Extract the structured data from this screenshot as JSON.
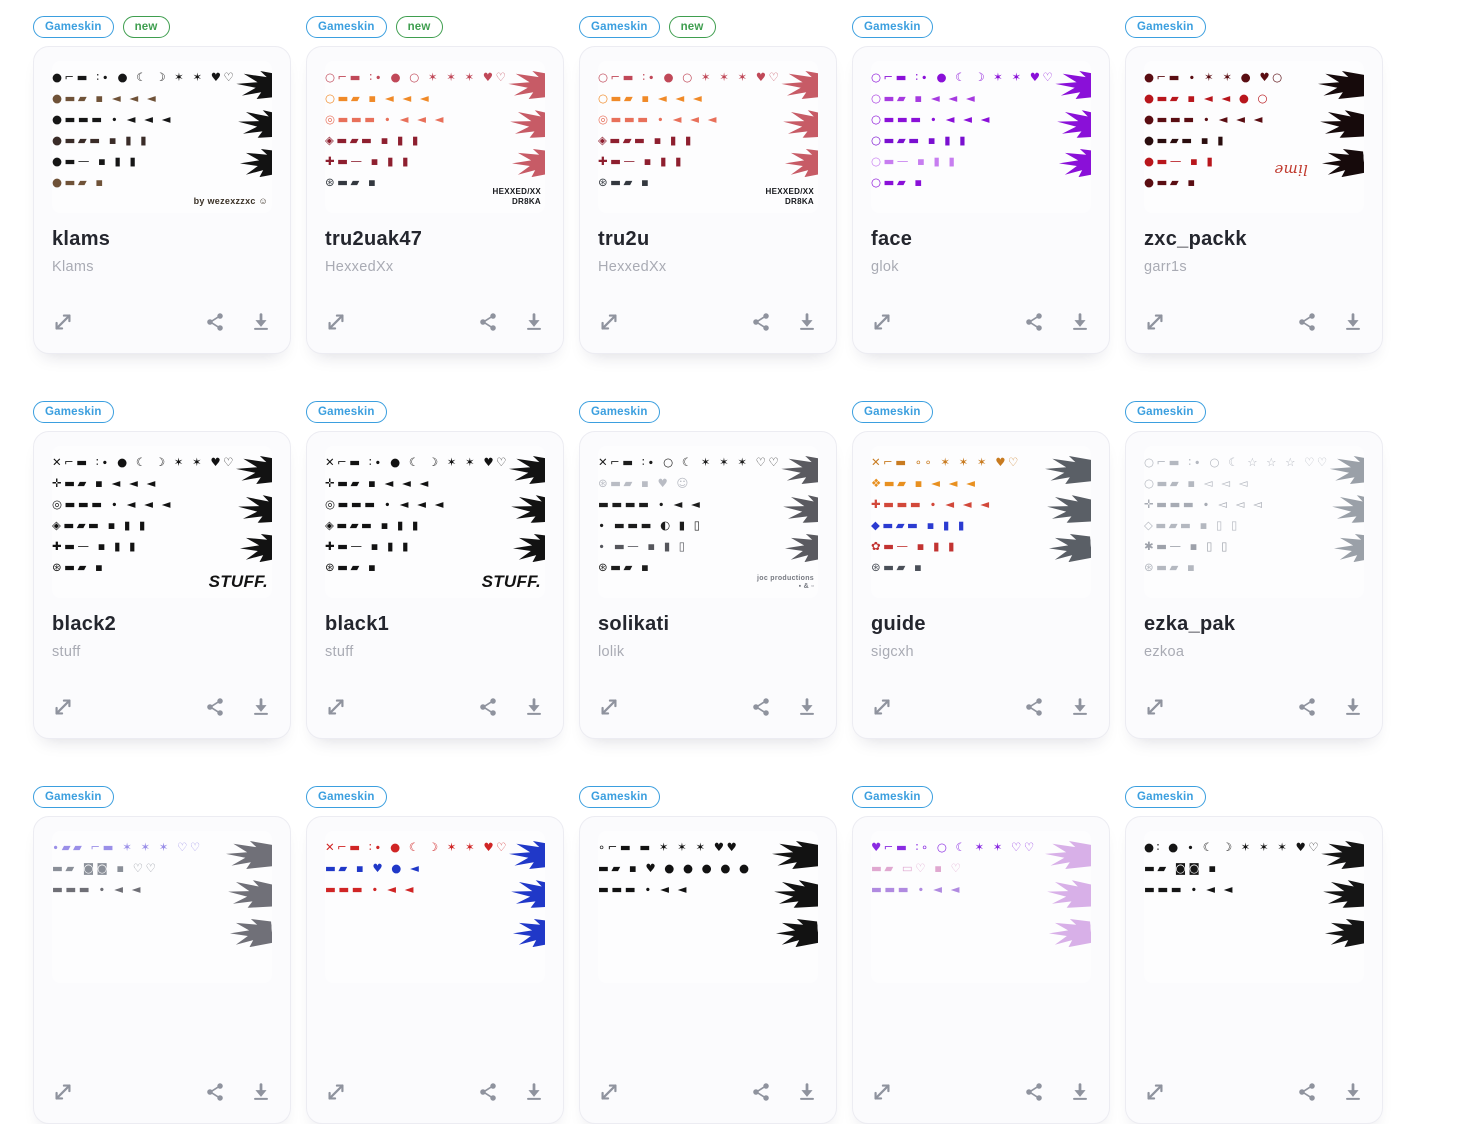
{
  "page": {
    "background": "#ffffff"
  },
  "badge_theme": {
    "gameskin_color": "#3b9fdf",
    "new_color": "#3f9e4f"
  },
  "icon_theme": {
    "color": "#8f939e",
    "names": [
      "expand-icon",
      "share-icon",
      "download-icon"
    ]
  },
  "cards": [
    {
      "badge": "Gameskin",
      "new_badge": "new",
      "title": "klams",
      "subtitle": "Klams",
      "preview": {
        "wing_color": "#121212",
        "watermark": {
          "text": "by wezexzzxc ☺",
          "color": "#3a3126",
          "size": 9
        },
        "rows": [
          {
            "t": "●⌐▬ ∶∙ ● ☾ ☽ ✶ ✶ ♥♡",
            "c": "#161616"
          },
          {
            "t": "●▬▰ ▪ ◄ ◄ ◄",
            "c": "#6f5238"
          },
          {
            "t": "●▬▬▬ ∙ ◄ ◄ ◄",
            "c": "#161616"
          },
          {
            "t": "●▬▰▬ ▪ ▮ ▮",
            "c": "#3a2c28"
          },
          {
            "t": "●▬— ▪ ▮ ▮",
            "c": "#161616"
          },
          {
            "t": "●▬▰ ▪",
            "c": "#6f5238"
          }
        ]
      }
    },
    {
      "badge": "Gameskin",
      "new_badge": "new",
      "title": "tru2uak47",
      "subtitle": "HexxedXx",
      "preview": {
        "wing_color": "#c75b66",
        "watermark": {
          "text": "HEXXED/XX\nDR8KA",
          "color": "#16181c",
          "size": 8,
          "bold": true
        },
        "rows": [
          {
            "t": "○⌐▬ ∶∙ ● ○ ✶ ✶ ✶ ♥♡",
            "c": "#c04858"
          },
          {
            "t": "○▬▰ ▪ ◄ ◄ ◄",
            "c": "#f08a28"
          },
          {
            "t": "◎▬▬▬ ∙ ◄ ◄ ◄",
            "c": "#e8705a"
          },
          {
            "t": "◈▬▰▬ ▪ ▮ ▮",
            "c": "#8e1f2f"
          },
          {
            "t": "✚▬— ▪ ▮ ▮",
            "c": "#8e1f2f"
          },
          {
            "t": "⊛▬▰ ▪",
            "c": "#33383f"
          }
        ]
      }
    },
    {
      "badge": "Gameskin",
      "new_badge": "new",
      "title": "tru2u",
      "subtitle": "HexxedXx",
      "preview": {
        "wing_color": "#c75b66",
        "watermark": {
          "text": "HEXXED/XX\nDR8KA",
          "color": "#16181c",
          "size": 8,
          "bold": true
        },
        "rows": [
          {
            "t": "○⌐▬ ∶∙ ● ○ ✶ ✶ ✶ ♥♡",
            "c": "#c04858"
          },
          {
            "t": "○▬▰ ▪ ◄ ◄ ◄",
            "c": "#f08a28"
          },
          {
            "t": "◎▬▬▬ ∙ ◄ ◄ ◄",
            "c": "#e8705a"
          },
          {
            "t": "◈▬▰▬ ▪ ▮ ▮",
            "c": "#8e1f2f"
          },
          {
            "t": "✚▬— ▪ ▮ ▮",
            "c": "#8e1f2f"
          },
          {
            "t": "⊛▬▰ ▪",
            "c": "#33383f"
          }
        ]
      }
    },
    {
      "badge": "Gameskin",
      "new_badge": null,
      "title": "face",
      "subtitle": "glok",
      "preview": {
        "wing_color": "#8a10d8",
        "watermark": null,
        "rows": [
          {
            "t": "○⌐▬ ∶∙ ● ☾ ☽ ✶ ✶ ♥♡",
            "c": "#8a10d8"
          },
          {
            "t": "○▬▰ ▪ ◄ ◄ ◄",
            "c": "#a63ae0"
          },
          {
            "t": "○▬▬▬ ∙ ◄ ◄ ◄",
            "c": "#8a10d8"
          },
          {
            "t": "○▬▰▬ ▪ ▮ ▮",
            "c": "#7a0fd0"
          },
          {
            "t": "○▬— ▪ ▮ ▮",
            "c": "#c77df0"
          },
          {
            "t": "○▬▰ ▪",
            "c": "#8a10d8"
          }
        ]
      }
    },
    {
      "badge": "Gameskin",
      "new_badge": null,
      "title": "zxc_packk",
      "subtitle": "garr1s",
      "preview": {
        "wing_color": "#160a0b",
        "watermark": {
          "text": "lime",
          "color": "#c03a2e",
          "size": 15,
          "italic": true,
          "serif": true,
          "rotate": true
        },
        "rows": [
          {
            "t": "●⌐▬ ∙ ✶ ✶ ● ♥○",
            "c": "#5a0d12"
          },
          {
            "t": "●▬▰ ▪ ◄ ◄ ● ○",
            "c": "#b8161c"
          },
          {
            "t": "●▬▬▬ ∙ ◄ ◄ ◄",
            "c": "#5a0d12"
          },
          {
            "t": "●▬▰▬ ▪ ▮",
            "c": "#2a0d0e"
          },
          {
            "t": "●▬— ▪ ▮",
            "c": "#b8161c"
          },
          {
            "t": "●▬▰ ▪",
            "c": "#5a0d12"
          }
        ]
      }
    },
    {
      "badge": "Gameskin",
      "new_badge": null,
      "title": "black2",
      "subtitle": "stuff",
      "preview": {
        "wing_color": "#121212",
        "watermark": {
          "text": "STUFF.",
          "color": "#121212",
          "size": 17,
          "bold": true,
          "italic": true
        },
        "rows": [
          {
            "t": "✕⌐▬ ∶∙ ● ☾ ☽ ✶ ✶ ♥♡",
            "c": "#121212"
          },
          {
            "t": "✛▬▰ ▪ ◄ ◄ ◄",
            "c": "#121212"
          },
          {
            "t": "◎▬▬▬ ∙ ◄ ◄ ◄",
            "c": "#121212"
          },
          {
            "t": "◈▬▰▬ ▪ ▮ ▮",
            "c": "#121212"
          },
          {
            "t": "✚▬— ▪ ▮ ▮",
            "c": "#121212"
          },
          {
            "t": "⊛▬▰ ▪",
            "c": "#121212"
          }
        ]
      }
    },
    {
      "badge": "Gameskin",
      "new_badge": null,
      "title": "black1",
      "subtitle": "stuff",
      "preview": {
        "wing_color": "#121212",
        "watermark": {
          "text": "STUFF.",
          "color": "#121212",
          "size": 17,
          "bold": true,
          "italic": true
        },
        "rows": [
          {
            "t": "✕⌐▬ ∶∙ ● ☾ ☽ ✶ ✶ ♥♡",
            "c": "#121212"
          },
          {
            "t": "✛▬▰ ▪ ◄ ◄ ◄",
            "c": "#121212"
          },
          {
            "t": "◎▬▬▬ ∙ ◄ ◄ ◄",
            "c": "#121212"
          },
          {
            "t": "◈▬▰▬ ▪ ▮ ▮",
            "c": "#121212"
          },
          {
            "t": "✚▬— ▪ ▮ ▮",
            "c": "#121212"
          },
          {
            "t": "⊛▬▰ ▪",
            "c": "#121212"
          }
        ]
      }
    },
    {
      "badge": "Gameskin",
      "new_badge": null,
      "title": "solikati",
      "subtitle": "lolik",
      "preview": {
        "wing_color": "#5a5a60",
        "watermark": {
          "text": "joc productions\n▪ & ▫",
          "color": "#777a82",
          "size": 7
        },
        "rows": [
          {
            "t": "✕⌐▬ ∶∙ ○ ☾ ✶ ✶ ✶ ♡♡",
            "c": "#1c1c1c"
          },
          {
            "t": "⊛▬▰ ▪ ♥ ☺",
            "c": "#b9bcc4"
          },
          {
            "t": "▬▬▬▬ ∙ ◄ ◄",
            "c": "#1c1c1c"
          },
          {
            "t": "∙ ▬▬▬ ◐ ▮ ▯",
            "c": "#1c1c1c"
          },
          {
            "t": "∙ ▬— ▪ ▮ ▯",
            "c": "#55565c"
          },
          {
            "t": "⊛▬▰ ▪",
            "c": "#1c1c1c"
          }
        ]
      }
    },
    {
      "badge": "Gameskin",
      "new_badge": null,
      "title": "guide",
      "subtitle": "sigcxh",
      "preview": {
        "wing_color": "#5a5f66",
        "watermark": null,
        "rows": [
          {
            "t": "✕⌐▬ ∘∘ ✶ ✶ ✶ ♥♡",
            "c": "#c87b20"
          },
          {
            "t": "❖▬▰ ▪ ◄ ◄ ◄",
            "c": "#e89020"
          },
          {
            "t": "✚▬▬▬ ∙ ◄ ◄ ◄",
            "c": "#d2483a"
          },
          {
            "t": "◆▬▰▬ ▪ ▮ ▮",
            "c": "#2b3bd1"
          },
          {
            "t": "✿▬— ▪ ▮ ▮",
            "c": "#c23331"
          },
          {
            "t": "⊛▬▰ ▪",
            "c": "#4a4f58"
          }
        ]
      }
    },
    {
      "badge": "Gameskin",
      "new_badge": null,
      "title": "ezka_pak",
      "subtitle": "ezkoa",
      "preview": {
        "wing_color": "#9aa0a8",
        "watermark": null,
        "rows": [
          {
            "t": "○⌐▬ ∶∙ ○ ☾ ☆ ☆ ☆ ♡♡",
            "c": "#b4b8c0"
          },
          {
            "t": "○▬▰ ▪ ◅ ◅ ◅",
            "c": "#b4b8c0"
          },
          {
            "t": "✛▬▬▬ ∙ ◅ ◅ ◅",
            "c": "#a7abb4"
          },
          {
            "t": "◇▬▰▬ ▪ ▯ ▯",
            "c": "#b4b8c0"
          },
          {
            "t": "✱▬— ▪ ▯ ▯",
            "c": "#9da1aa"
          },
          {
            "t": "⊛▬▰ ▪",
            "c": "#b4b8c0"
          }
        ]
      }
    },
    {
      "badge": "Gameskin",
      "new_badge": null,
      "title": null,
      "subtitle": null,
      "preview": {
        "wing_color": "#707078",
        "watermark": null,
        "rows": [
          {
            "t": "∙▰▰ ⌐▬ ✶ ✶ ✶ ♡♡",
            "c": "#9a8fe8"
          },
          {
            "t": "▬▰ ◙◙ ▪ ♡♡",
            "c": "#8a8f98"
          },
          {
            "t": "▬▬▬ ∙ ◄ ◄",
            "c": "#6f6f76"
          }
        ]
      }
    },
    {
      "badge": "Gameskin",
      "new_badge": null,
      "title": null,
      "subtitle": null,
      "preview": {
        "wing_color": "#2038c8",
        "watermark": null,
        "rows": [
          {
            "t": "✕⌐▬ ∶∙ ● ☾ ☽ ✶ ✶ ♥♡",
            "c": "#d02525"
          },
          {
            "t": "▬▰ ▪ ♥ ● ◄",
            "c": "#2038c8"
          },
          {
            "t": "▬▬▬ ∙ ◄ ◄",
            "c": "#d02525"
          }
        ]
      }
    },
    {
      "badge": "Gameskin",
      "new_badge": null,
      "title": null,
      "subtitle": null,
      "preview": {
        "wing_color": "#121212",
        "watermark": null,
        "rows": [
          {
            "t": "∘⌐▬ ▬ ✶ ✶ ✶ ♥♥",
            "c": "#121212"
          },
          {
            "t": "▬▰ ▪ ♥ ● ● ● ● ●",
            "c": "#121212"
          },
          {
            "t": "▬▬▬ ∙ ◄ ◄",
            "c": "#121212"
          }
        ]
      }
    },
    {
      "badge": "Gameskin",
      "new_badge": null,
      "title": null,
      "subtitle": null,
      "preview": {
        "wing_color": "#d8b0e8",
        "watermark": null,
        "rows": [
          {
            "t": "♥⌐▬ ∶∘ ○ ☾ ✶ ✶ ♡♡",
            "c": "#8a2be2"
          },
          {
            "t": "▬▰ ▭♡ ▪ ♡",
            "c": "#e0a8d0"
          },
          {
            "t": "▬▬▬ ∙ ◄ ◄",
            "c": "#b08ae0"
          }
        ]
      }
    },
    {
      "badge": "Gameskin",
      "new_badge": null,
      "title": null,
      "subtitle": null,
      "preview": {
        "wing_color": "#151515",
        "watermark": null,
        "rows": [
          {
            "t": "●∶ ● ∙ ☾ ☽ ✶ ✶ ✶ ♥♡",
            "c": "#151515"
          },
          {
            "t": "▬▰ ◙◙ ▪",
            "c": "#151515"
          },
          {
            "t": "▬▬▬ ∙ ◄ ◄",
            "c": "#151515"
          }
        ]
      }
    }
  ]
}
